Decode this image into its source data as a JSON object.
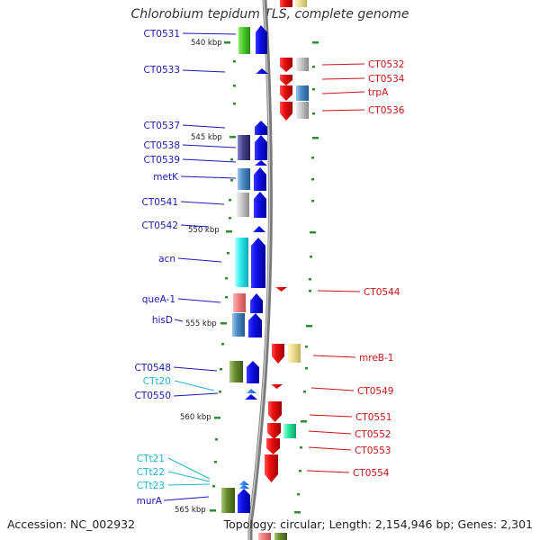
{
  "title": "Chlorobium tepidum TLS, complete genome",
  "footer": {
    "accession": "Accession: NC_002932",
    "summary": "Topology: circular; Length: 2,154,946 bp; Genes: 2,301"
  },
  "colors": {
    "forward_label": "#1a1ab4",
    "reverse_label": "#c81414",
    "rna_label": "#1eb4d2",
    "backbone": "#8c8c8c",
    "tick": "#2e8b2e"
  },
  "scale_labels": [
    "540 kbp",
    "545 kbp",
    "550 kbp",
    "555 kbp",
    "560 kbp",
    "565 kbp"
  ],
  "forward_labels": [
    "CT0531",
    "CT0533",
    "CT0537",
    "CT0538",
    "CT0539",
    "metK",
    "CT0541",
    "CT0542",
    "acn",
    "queA-1",
    "hisD",
    "CT0548",
    "CTt20",
    "CT0550",
    "CTt21",
    "CTt22",
    "CTt23",
    "murA"
  ],
  "reverse_labels": [
    "CT0532",
    "CT0534",
    "trpA",
    "CT0536",
    "CT0544",
    "mreB-1",
    "CT0549",
    "CT0551",
    "CT0552",
    "CT0553",
    "CT0554"
  ]
}
